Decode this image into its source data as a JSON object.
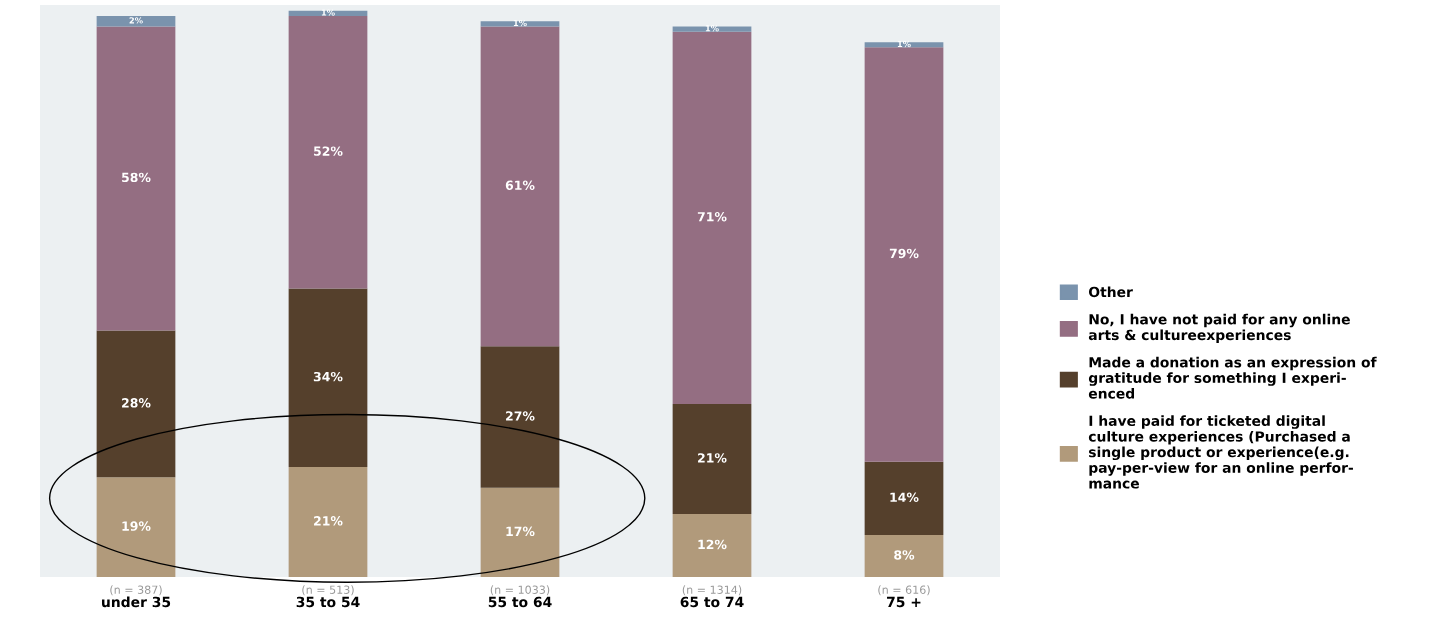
{
  "chart_data": {
    "type": "bar",
    "stacked": true,
    "data_labels": false,
    "legend": "right",
    "categories": [
      "under 35",
      "35 to 54",
      "55 to 64",
      "65 to 74",
      "75 +"
    ],
    "series": [
      {
        "name": "I have paid for ticketed digital\nculture experiences (Purchased a\nsingle product or experience(e.g.\npay-per-view for an online perfor-\nmance",
        "color": "#b19a7b",
        "values": [
          19,
          21,
          17,
          12,
          8
        ],
        "value_labels": [
          "19%",
          "21%",
          "17%",
          "12%",
          "8%"
        ]
      },
      {
        "name": "Made a donation as an expression of\ngratitude for something I experi-\nenced",
        "color": "#55402c",
        "values": [
          28,
          34,
          27,
          21,
          14
        ],
        "value_labels": [
          "28%",
          "34%",
          "27%",
          "21%",
          "14%"
        ]
      },
      {
        "name": "No, I have not paid for any online\narts & cultureexperiences",
        "color": "#946e82",
        "values": [
          58,
          52,
          61,
          71,
          79
        ],
        "value_labels": [
          "58%",
          "52%",
          "61%",
          "71%",
          "79%"
        ]
      },
      {
        "name": "Other",
        "color": "#7a93ad",
        "values": [
          2,
          1,
          1,
          1,
          1
        ],
        "value_labels": [
          "2%",
          "1%",
          "1%",
          "1%",
          "1%"
        ]
      }
    ],
    "annotations": [
      "(n = 387)",
      "(n = 513)",
      "(n = 1033)",
      "(n = 1314)",
      "(n = 616)"
    ]
  }
}
